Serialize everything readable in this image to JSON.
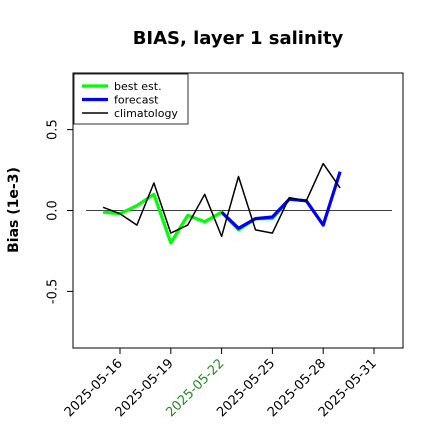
{
  "chart_data": {
    "type": "line",
    "title": "BIAS, layer 1 salinity",
    "ylabel": "Bias (1e-3)",
    "xlabel": "",
    "ylim": [
      -0.85,
      0.85
    ],
    "yticks": [
      "-0.5",
      "0.0",
      "0.5"
    ],
    "xticks": [
      "2025-05-16",
      "2025-05-19",
      "2025-05-22",
      "2025-05-25",
      "2025-05-28",
      "2025-05-31"
    ],
    "highlight_tick": "2025-05-22",
    "highlight_color": "#228b22",
    "reference_line": 0.0,
    "legend_position": "top-left",
    "series": [
      {
        "name": "best est.",
        "color": "#00ff00",
        "x": [
          "2025-05-15",
          "2025-05-16",
          "2025-05-17",
          "2025-05-18",
          "2025-05-19",
          "2025-05-20",
          "2025-05-21",
          "2025-05-22",
          "2025-05-23",
          "2025-05-24",
          "2025-05-25",
          "2025-05-26",
          "2025-05-27"
        ],
        "y": [
          -0.01,
          -0.02,
          0.03,
          0.1,
          -0.2,
          -0.03,
          -0.07,
          -0.01,
          -0.12,
          -0.05,
          -0.05,
          0.07,
          0.06
        ]
      },
      {
        "name": "forecast",
        "color": "#0000ff",
        "x": [
          "2025-05-22",
          "2025-05-23",
          "2025-05-24",
          "2025-05-25",
          "2025-05-26",
          "2025-05-27",
          "2025-05-28",
          "2025-05-29"
        ],
        "y": [
          -0.01,
          -0.11,
          -0.05,
          -0.04,
          0.07,
          0.06,
          -0.09,
          0.24
        ]
      },
      {
        "name": "climatology",
        "color": "#000000",
        "x": [
          "2025-05-15",
          "2025-05-16",
          "2025-05-17",
          "2025-05-18",
          "2025-05-19",
          "2025-05-20",
          "2025-05-21",
          "2025-05-22",
          "2025-05-23",
          "2025-05-24",
          "2025-05-25",
          "2025-05-26",
          "2025-05-27",
          "2025-05-28",
          "2025-05-29"
        ],
        "y": [
          0.02,
          -0.02,
          -0.09,
          0.17,
          -0.14,
          -0.09,
          0.1,
          -0.16,
          0.21,
          -0.12,
          -0.14,
          0.08,
          0.06,
          0.29,
          0.14
        ]
      }
    ]
  }
}
